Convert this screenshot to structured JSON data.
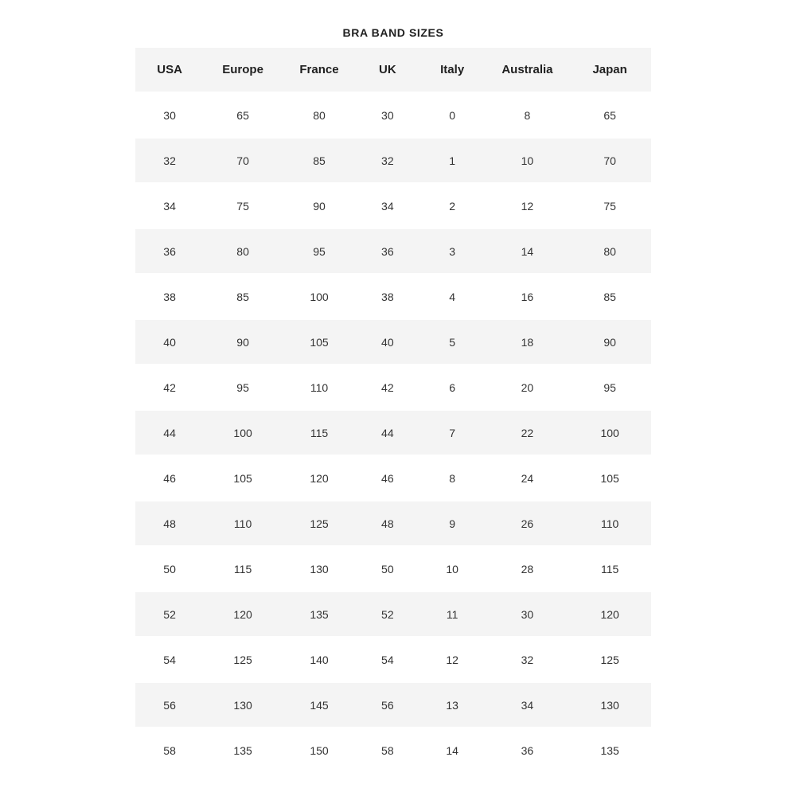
{
  "page": {
    "title": "BRA BAND SIZES"
  },
  "colors": {
    "background": "#ffffff",
    "stripe": "#f4f4f4",
    "text": "#333333",
    "header_text": "#1f1f1f"
  },
  "chart_data": {
    "type": "table",
    "title": "BRA BAND SIZES",
    "columns": [
      "USA",
      "Europe",
      "France",
      "UK",
      "Italy",
      "Australia",
      "Japan"
    ],
    "rows": [
      [
        "30",
        "65",
        "80",
        "30",
        "0",
        "8",
        "65"
      ],
      [
        "32",
        "70",
        "85",
        "32",
        "1",
        "10",
        "70"
      ],
      [
        "34",
        "75",
        "90",
        "34",
        "2",
        "12",
        "75"
      ],
      [
        "36",
        "80",
        "95",
        "36",
        "3",
        "14",
        "80"
      ],
      [
        "38",
        "85",
        "100",
        "38",
        "4",
        "16",
        "85"
      ],
      [
        "40",
        "90",
        "105",
        "40",
        "5",
        "18",
        "90"
      ],
      [
        "42",
        "95",
        "110",
        "42",
        "6",
        "20",
        "95"
      ],
      [
        "44",
        "100",
        "115",
        "44",
        "7",
        "22",
        "100"
      ],
      [
        "46",
        "105",
        "120",
        "46",
        "8",
        "24",
        "105"
      ],
      [
        "48",
        "110",
        "125",
        "48",
        "9",
        "26",
        "110"
      ],
      [
        "50",
        "115",
        "130",
        "50",
        "10",
        "28",
        "115"
      ],
      [
        "52",
        "120",
        "135",
        "52",
        "11",
        "30",
        "120"
      ],
      [
        "54",
        "125",
        "140",
        "54",
        "12",
        "32",
        "125"
      ],
      [
        "56",
        "130",
        "145",
        "56",
        "13",
        "34",
        "130"
      ],
      [
        "58",
        "135",
        "150",
        "58",
        "14",
        "36",
        "135"
      ]
    ]
  }
}
